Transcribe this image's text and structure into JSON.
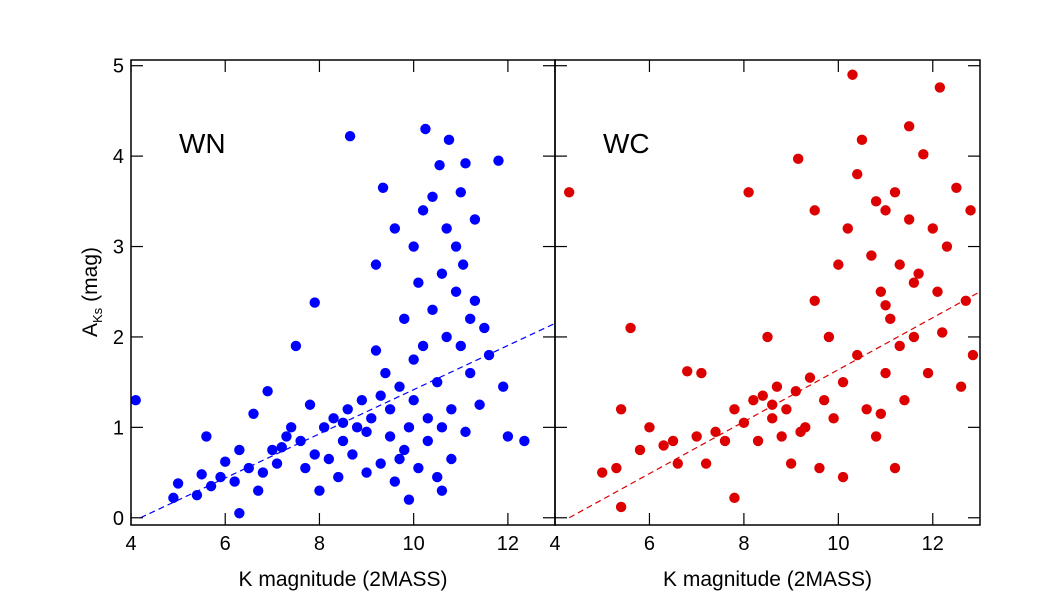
{
  "chart_data": [
    {
      "type": "scatter",
      "annotation": "WN",
      "xlabel": "K magnitude (2MASS)",
      "ylabel": {
        "symbol": "A",
        "subscript": "Ks",
        "unit": "(mag)"
      },
      "xlim": [
        4,
        13
      ],
      "ylim": [
        -0.08,
        5.03
      ],
      "xticks": [
        4,
        6,
        8,
        10,
        12
      ],
      "yticks": [
        0,
        1,
        2,
        3,
        4,
        5
      ],
      "color": "#0000ff",
      "x": [
        4.1,
        4.9,
        5.0,
        5.4,
        5.5,
        5.6,
        5.7,
        5.9,
        6.0,
        6.2,
        6.3,
        6.3,
        6.5,
        6.6,
        6.7,
        6.9,
        7.0,
        7.1,
        7.3,
        7.4,
        7.5,
        7.6,
        7.7,
        7.8,
        7.9,
        7.9,
        8.0,
        8.1,
        8.2,
        8.3,
        8.4,
        8.5,
        8.6,
        8.65,
        8.7,
        8.8,
        8.9,
        9.0,
        9.0,
        9.1,
        9.2,
        9.2,
        9.3,
        9.35,
        9.4,
        9.5,
        9.5,
        9.6,
        9.6,
        9.7,
        9.8,
        9.8,
        9.9,
        9.9,
        10.0,
        10.0,
        10.1,
        10.1,
        10.2,
        10.2,
        10.25,
        10.3,
        10.3,
        10.4,
        10.4,
        10.5,
        10.5,
        10.55,
        10.6,
        10.6,
        10.7,
        10.7,
        10.75,
        10.8,
        10.8,
        10.9,
        10.9,
        11.0,
        11.0,
        11.05,
        11.1,
        11.1,
        11.2,
        11.3,
        11.3,
        11.4,
        11.5,
        11.6,
        11.8,
        11.9,
        12.0,
        12.35,
        9.3,
        8.5,
        10.0,
        7.2,
        6.8,
        9.7,
        10.6,
        11.2
      ],
      "values": [
        1.3,
        0.22,
        0.38,
        0.25,
        0.48,
        0.9,
        0.35,
        0.45,
        0.62,
        0.4,
        0.05,
        0.75,
        0.55,
        1.15,
        0.3,
        1.4,
        0.75,
        0.6,
        0.9,
        1.0,
        1.9,
        0.85,
        0.55,
        1.25,
        2.38,
        0.7,
        0.3,
        1.0,
        0.65,
        1.1,
        0.45,
        0.85,
        1.2,
        4.22,
        0.7,
        1.0,
        1.3,
        0.5,
        0.95,
        1.1,
        2.8,
        1.85,
        0.6,
        3.65,
        1.6,
        0.9,
        1.2,
        0.4,
        3.2,
        1.45,
        2.2,
        0.75,
        1.0,
        0.2,
        3.0,
        1.3,
        0.55,
        2.6,
        1.9,
        3.4,
        4.3,
        1.1,
        0.85,
        2.3,
        3.55,
        1.5,
        0.45,
        3.9,
        2.7,
        1.0,
        2.0,
        3.2,
        4.18,
        1.2,
        0.65,
        2.5,
        3.0,
        1.9,
        3.6,
        2.8,
        3.92,
        0.95,
        1.6,
        2.4,
        3.3,
        1.25,
        2.1,
        1.8,
        3.95,
        1.45,
        0.9,
        0.85,
        1.35,
        1.05,
        1.75,
        0.78,
        0.5,
        0.65,
        0.3,
        2.2
      ],
      "fit": {
        "x": [
          4.2,
          13
        ],
        "y": [
          0,
          2.15
        ]
      }
    },
    {
      "type": "scatter",
      "annotation": "WC",
      "xlabel": "K magnitude (2MASS)",
      "xlim": [
        4,
        13
      ],
      "ylim": [
        -0.08,
        5.03
      ],
      "xticks": [
        4,
        6,
        8,
        10,
        12
      ],
      "yticks": [
        0,
        1,
        2,
        3,
        4,
        5
      ],
      "color": "#dd0000",
      "x": [
        4.3,
        5.0,
        5.3,
        5.4,
        5.4,
        5.6,
        5.8,
        6.0,
        6.3,
        6.5,
        6.6,
        6.8,
        7.1,
        7.0,
        7.2,
        7.4,
        7.6,
        7.8,
        7.8,
        8.0,
        8.1,
        8.2,
        8.3,
        8.4,
        8.5,
        8.6,
        8.7,
        8.8,
        8.9,
        9.0,
        9.1,
        9.15,
        9.3,
        9.4,
        9.5,
        9.5,
        9.6,
        9.7,
        9.8,
        9.9,
        10.0,
        10.1,
        10.1,
        10.2,
        10.3,
        10.4,
        10.4,
        10.5,
        10.6,
        10.7,
        10.8,
        10.8,
        10.9,
        11.0,
        11.0,
        11.1,
        11.2,
        11.2,
        11.3,
        11.4,
        11.5,
        11.5,
        11.6,
        11.7,
        11.8,
        11.9,
        12.0,
        12.1,
        12.15,
        12.3,
        12.5,
        12.6,
        12.7,
        12.8,
        12.85,
        11.0,
        10.9,
        9.2,
        8.6,
        11.6,
        12.2,
        11.3
      ],
      "values": [
        3.6,
        0.5,
        0.55,
        0.12,
        1.2,
        2.1,
        0.75,
        1.0,
        0.8,
        0.85,
        0.6,
        1.62,
        1.6,
        0.9,
        0.6,
        0.95,
        0.85,
        1.2,
        0.22,
        1.05,
        3.6,
        1.3,
        0.85,
        1.35,
        2.0,
        1.1,
        1.45,
        0.9,
        1.2,
        0.6,
        1.4,
        3.97,
        1.0,
        1.55,
        3.4,
        2.4,
        0.55,
        1.3,
        2.0,
        1.1,
        2.8,
        1.5,
        0.45,
        3.2,
        4.9,
        3.8,
        1.8,
        4.18,
        1.2,
        2.9,
        3.5,
        0.9,
        2.5,
        3.4,
        1.6,
        2.2,
        0.55,
        3.6,
        2.8,
        1.3,
        4.33,
        3.3,
        2.0,
        2.7,
        4.02,
        1.6,
        3.2,
        2.5,
        4.76,
        3.0,
        3.65,
        1.45,
        2.4,
        3.4,
        1.8,
        2.35,
        1.15,
        0.95,
        1.25,
        2.6,
        2.05,
        1.9
      ],
      "fit": {
        "x": [
          4.3,
          13
        ],
        "y": [
          0,
          2.5
        ]
      }
    }
  ]
}
